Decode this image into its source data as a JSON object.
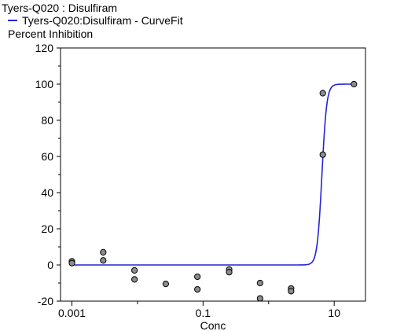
{
  "chart_data": {
    "type": "scatter",
    "title": "Tyers-Q020  : Disulfiram",
    "ylabel": "Percent  Inhibition",
    "xlabel": "Conc",
    "x_scale": "log",
    "xlim": [
      0.00067,
      30
    ],
    "ylim": [
      -20,
      120
    ],
    "x_ticks": [
      {
        "value": 0.001,
        "label": "0.001"
      },
      {
        "value": 0.1,
        "label": "0.1"
      },
      {
        "value": 10,
        "label": "10"
      }
    ],
    "y_ticks": [
      {
        "value": -20,
        "label": "-20"
      },
      {
        "value": 0,
        "label": "0"
      },
      {
        "value": 20,
        "label": "20"
      },
      {
        "value": 40,
        "label": "40"
      },
      {
        "value": 60,
        "label": "60"
      },
      {
        "value": 80,
        "label": "80"
      },
      {
        "value": 100,
        "label": "100"
      },
      {
        "value": 120,
        "label": "120"
      }
    ],
    "grid": false,
    "legend": {
      "placement": "top-left",
      "entry": "Tyers-Q020:Disulfiram - CurveFit"
    },
    "points": [
      {
        "x": 0.001,
        "y": 2
      },
      {
        "x": 0.001,
        "y": 1
      },
      {
        "x": 0.003,
        "y": 7
      },
      {
        "x": 0.003,
        "y": 2.5
      },
      {
        "x": 0.009,
        "y": -3
      },
      {
        "x": 0.009,
        "y": -8
      },
      {
        "x": 0.027,
        "y": -10.5
      },
      {
        "x": 0.082,
        "y": -6.5
      },
      {
        "x": 0.082,
        "y": -13.5
      },
      {
        "x": 0.25,
        "y": -2.5
      },
      {
        "x": 0.25,
        "y": -4
      },
      {
        "x": 0.74,
        "y": -10
      },
      {
        "x": 0.74,
        "y": -18.5
      },
      {
        "x": 2.2,
        "y": -13
      },
      {
        "x": 2.2,
        "y": -14.5
      },
      {
        "x": 6.7,
        "y": 95
      },
      {
        "x": 6.7,
        "y": 61
      },
      {
        "x": 20,
        "y": 100
      }
    ],
    "curve": {
      "bottom": 0,
      "top": 100,
      "ec50": 6.5,
      "hill": 12,
      "x_start": 0.001,
      "x_end": 20
    }
  },
  "colors": {
    "curve": "#2424d6",
    "point_fill": "#8c8c8c",
    "point_stroke": "#000000",
    "axis": "#000000"
  }
}
